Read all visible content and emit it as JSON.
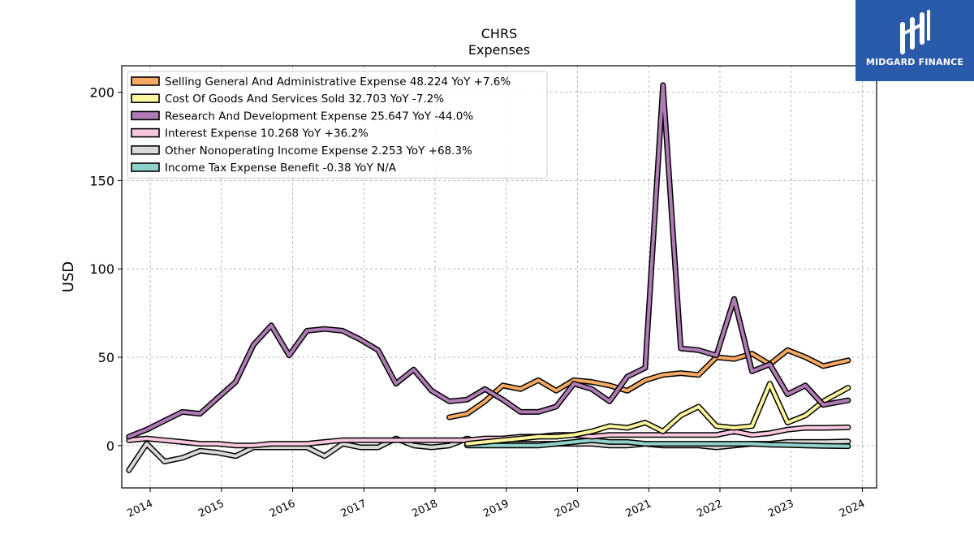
{
  "brand": {
    "name": "MIDGARD FINANCE",
    "bg_color": "#2a5aaa"
  },
  "chart_data": {
    "type": "line",
    "title": "CHRS",
    "subtitle": "Expenses",
    "ylabel": "USD",
    "xlabel": "",
    "xlim": [
      2013.6,
      2024.2
    ],
    "ylim": [
      -24,
      215
    ],
    "yticks": [
      0,
      50,
      100,
      150,
      200
    ],
    "xticks": [
      2014,
      2015,
      2016,
      2017,
      2018,
      2019,
      2020,
      2021,
      2022,
      2023,
      2024
    ],
    "grid": true,
    "legend_position": "top-left",
    "series": [
      {
        "name": "Selling General And Administrative Expense  48.224 YoY +7.6%",
        "color": "#f5a962",
        "x": [
          2018.2,
          2018.45,
          2018.7,
          2018.95,
          2019.2,
          2019.45,
          2019.7,
          2019.95,
          2020.2,
          2020.45,
          2020.7,
          2020.95,
          2021.2,
          2021.45,
          2021.7,
          2021.95,
          2022.2,
          2022.45,
          2022.7,
          2022.95,
          2023.2,
          2023.45,
          2023.8
        ],
        "y": [
          16,
          18,
          25,
          34,
          32,
          37,
          31,
          37,
          36,
          34,
          31,
          37,
          40,
          41,
          40,
          50,
          49,
          52,
          46,
          54,
          50,
          45,
          48.2
        ]
      },
      {
        "name": "Cost Of Goods And Services Sold  32.703 YoY -7.2%",
        "color": "#fbf59c",
        "x": [
          2018.45,
          2018.7,
          2018.95,
          2019.2,
          2019.45,
          2019.7,
          2019.95,
          2020.2,
          2020.45,
          2020.7,
          2020.95,
          2021.2,
          2021.45,
          2021.7,
          2021.95,
          2022.2,
          2022.45,
          2022.7,
          2022.95,
          2023.2,
          2023.45,
          2023.8
        ],
        "y": [
          1,
          2,
          3,
          4,
          5,
          5,
          6,
          8,
          11,
          10,
          13,
          8,
          17,
          22,
          11,
          10,
          11,
          35,
          13,
          17,
          25,
          32.7
        ]
      },
      {
        "name": "Research And Development Expense  25.647 YoY -44.0%",
        "color": "#b07bb5",
        "x": [
          2013.7,
          2013.95,
          2014.2,
          2014.45,
          2014.7,
          2014.95,
          2015.2,
          2015.45,
          2015.7,
          2015.95,
          2016.2,
          2016.45,
          2016.7,
          2016.95,
          2017.2,
          2017.45,
          2017.7,
          2017.95,
          2018.2,
          2018.45,
          2018.7,
          2018.95,
          2019.2,
          2019.45,
          2019.7,
          2019.95,
          2020.2,
          2020.45,
          2020.7,
          2020.95,
          2021.2,
          2021.45,
          2021.7,
          2021.95,
          2022.2,
          2022.45,
          2022.7,
          2022.95,
          2023.2,
          2023.45,
          2023.8
        ],
        "y": [
          5,
          9,
          14,
          19,
          18,
          27,
          36,
          57,
          68,
          51,
          65,
          66,
          65,
          60,
          54,
          35,
          43,
          31,
          25,
          26,
          32,
          26,
          19,
          19,
          22,
          35,
          32,
          25,
          39,
          44,
          204,
          55,
          54,
          51,
          83,
          42,
          46,
          29,
          34,
          23,
          25.6
        ]
      },
      {
        "name": "Interest Expense  10.268 YoY +36.2%",
        "color": "#f8c7dd",
        "x": [
          2013.7,
          2013.95,
          2014.2,
          2014.45,
          2014.7,
          2014.95,
          2015.2,
          2015.45,
          2015.7,
          2015.95,
          2016.2,
          2016.45,
          2016.7,
          2016.95,
          2017.2,
          2017.45,
          2017.7,
          2017.95,
          2018.2,
          2018.45,
          2018.7,
          2018.95,
          2019.2,
          2019.45,
          2019.7,
          2019.95,
          2020.2,
          2020.45,
          2020.7,
          2020.95,
          2021.2,
          2021.45,
          2021.7,
          2021.95,
          2022.2,
          2022.45,
          2022.7,
          2022.95,
          2023.2,
          2023.45,
          2023.8
        ],
        "y": [
          3,
          4,
          3,
          2,
          1,
          1,
          0,
          0,
          1,
          1,
          1,
          2,
          3,
          3,
          3,
          3,
          3,
          3,
          3,
          3,
          4,
          4,
          5,
          5,
          6,
          6,
          5,
          6,
          6,
          6,
          6,
          6,
          6,
          6,
          8,
          6,
          7,
          9,
          10,
          10,
          10.3
        ]
      },
      {
        "name": "Other Nonoperating Income Expense  2.253 YoY +68.3%",
        "color": "#d9d9d9",
        "x": [
          2013.7,
          2013.95,
          2014.2,
          2014.45,
          2014.7,
          2014.95,
          2015.2,
          2015.45,
          2015.7,
          2015.95,
          2016.2,
          2016.45,
          2016.7,
          2016.95,
          2017.2,
          2017.45,
          2017.7,
          2017.95,
          2018.2,
          2018.45,
          2018.7,
          2018.95,
          2019.2,
          2019.45,
          2019.7,
          2019.95,
          2020.2,
          2020.45,
          2020.7,
          2020.95,
          2021.2,
          2021.45,
          2021.7,
          2021.95,
          2022.2,
          2022.45,
          2022.7,
          2022.95,
          2023.2,
          2023.45,
          2023.8
        ],
        "y": [
          -14,
          1,
          -9,
          -7,
          -3,
          -4,
          -6,
          -1,
          -1,
          -1,
          -1,
          -6,
          1,
          -1,
          -1,
          4,
          0,
          -1,
          0,
          4,
          1,
          1,
          1,
          1,
          1,
          1,
          1,
          0,
          0,
          1,
          0,
          0,
          0,
          -1,
          0,
          1,
          1,
          2,
          2,
          2,
          2.3
        ]
      },
      {
        "name": "Income Tax Expense Benefit  -0.38 YoY N/A",
        "color": "#8fd1c8",
        "x": [
          2018.45,
          2018.7,
          2018.95,
          2019.2,
          2019.45,
          2019.7,
          2019.95,
          2020.2,
          2020.45,
          2020.7,
          2020.95,
          2021.2,
          2021.45,
          2021.7,
          2021.95,
          2022.2,
          2022.45,
          2022.7,
          2022.95,
          2023.2,
          2023.45,
          2023.8
        ],
        "y": [
          0,
          0,
          0,
          0,
          0,
          1,
          2,
          3,
          2,
          2,
          1,
          1,
          1,
          1,
          1,
          1,
          1,
          0.5,
          0.3,
          0,
          -0.2,
          -0.38
        ]
      }
    ]
  }
}
